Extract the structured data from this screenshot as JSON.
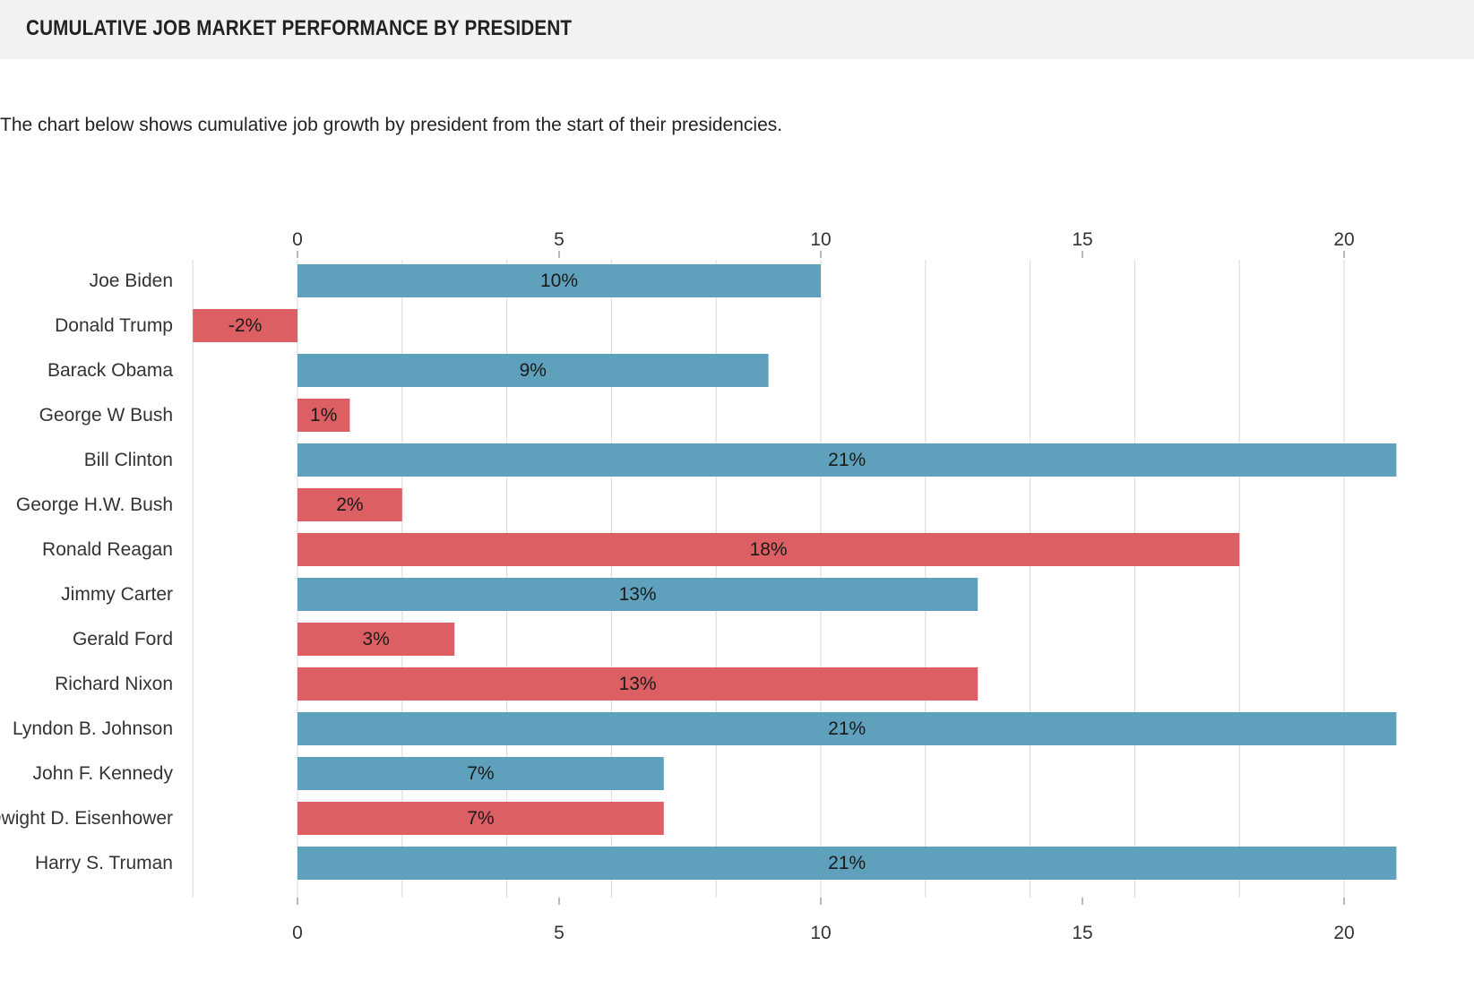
{
  "header": {
    "title": "CUMULATIVE JOB MARKET PERFORMANCE BY PRESIDENT"
  },
  "description": "The chart below shows cumulative job growth by president from the start of their presidencies.",
  "colors": {
    "positive_party": "#5fa0bd",
    "negative_party": "#db5f63",
    "grid": "#e0e0e0",
    "header_bg": "#f2f2f2"
  },
  "chart_data": {
    "type": "bar",
    "orientation": "horizontal",
    "title": "",
    "xlabel": "",
    "ylabel": "",
    "xlim": [
      -2,
      21
    ],
    "x_ticks": [
      0,
      5,
      10,
      15,
      20
    ],
    "grid": true,
    "categories": [
      "Joe Biden",
      "Donald Trump",
      "Barack Obama",
      "George W Bush",
      "Bill Clinton",
      "George H.W. Bush",
      "Ronald Reagan",
      "Jimmy Carter",
      "Gerald Ford",
      "Richard Nixon",
      "Lyndon B. Johnson",
      "John F. Kennedy",
      "Dwight D. Eisenhower",
      "Harry S. Truman"
    ],
    "values": [
      10,
      -2,
      9,
      1,
      21,
      2,
      18,
      13,
      3,
      13,
      21,
      7,
      7,
      21
    ],
    "labels": [
      "10%",
      "-2%",
      "9%",
      "1%",
      "21%",
      "2%",
      "18%",
      "13%",
      "3%",
      "13%",
      "21%",
      "7%",
      "7%",
      "21%"
    ],
    "bar_colors": [
      "#5fa0bd",
      "#db5f63",
      "#5fa0bd",
      "#db5f63",
      "#5fa0bd",
      "#db5f63",
      "#db5f63",
      "#5fa0bd",
      "#db5f63",
      "#db5f63",
      "#5fa0bd",
      "#5fa0bd",
      "#db5f63",
      "#5fa0bd"
    ]
  }
}
